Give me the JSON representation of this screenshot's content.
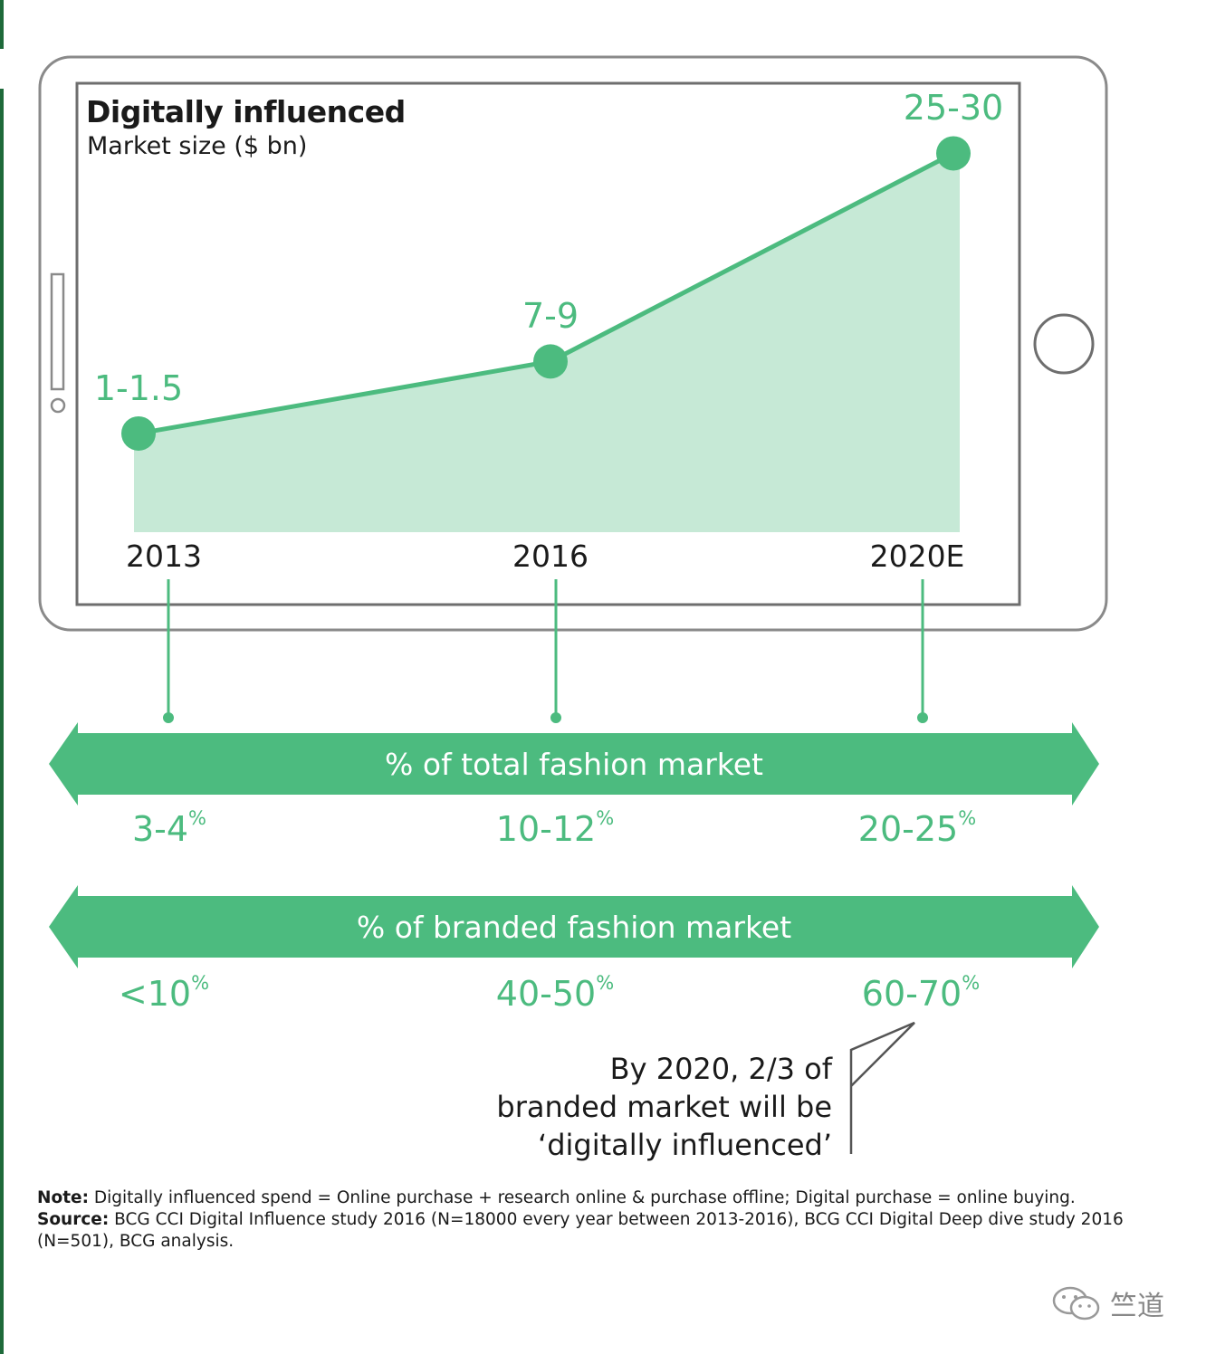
{
  "chart_data": {
    "type": "area",
    "title": "Digitally influenced",
    "subtitle": "Market size ($ bn)",
    "categories": [
      "2013",
      "2016",
      "2020E"
    ],
    "values": [
      1.25,
      8,
      27.5
    ],
    "value_labels": [
      "1-1.5",
      "7-9",
      "25-30"
    ],
    "ylim": [
      -8,
      30
    ],
    "colors": {
      "line": "#4cbb7f",
      "fill": "#c6e9d6"
    }
  },
  "bands": [
    {
      "label": "% of total fashion market",
      "values": [
        {
          "main": "3-4",
          "unit": "%"
        },
        {
          "main": "10-12",
          "unit": "%"
        },
        {
          "main": "20-25",
          "unit": "%"
        }
      ]
    },
    {
      "label": "% of branded fashion market",
      "values": [
        {
          "main": "<10",
          "unit": "%"
        },
        {
          "main": "40-50",
          "unit": "%"
        },
        {
          "main": "60-70",
          "unit": "%"
        }
      ]
    }
  ],
  "callout": {
    "line1": "By 2020, 2/3 of",
    "line2": "branded market will be",
    "line3": "‘digitally influenced’"
  },
  "notes": {
    "note_label": "Note:",
    "note_text": " Digitally influenced spend = Online purchase + research online & purchase offline; Digital purchase = online buying.",
    "source_label": "Source:",
    "source_text": " BCG CCI Digital Influence study 2016 (N=18000 every year between 2013-2016), BCG CCI Digital Deep dive study 2016 (N=501), BCG analysis."
  },
  "watermark": "竺道",
  "icons": {
    "device": "tablet-frame-icon",
    "wechat": "wechat-icon"
  }
}
